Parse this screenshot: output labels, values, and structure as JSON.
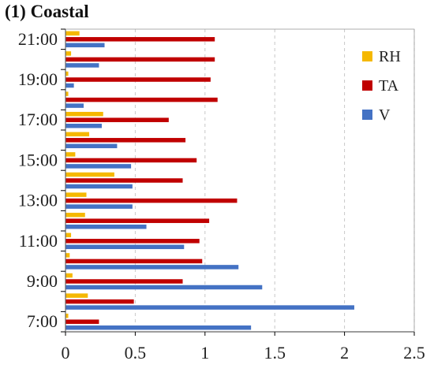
{
  "title": "(1) Coastal",
  "chart_data": {
    "type": "bar",
    "orientation": "horizontal",
    "title": "(1) Coastal",
    "categories": [
      "7:00",
      "8:00",
      "9:00",
      "10:00",
      "11:00",
      "12:00",
      "13:00",
      "14:00",
      "15:00",
      "16:00",
      "17:00",
      "18:00",
      "19:00",
      "20:00",
      "21:00"
    ],
    "y_tick_labels": [
      "7:00",
      "9:00",
      "11:00",
      "13:00",
      "15:00",
      "17:00",
      "19:00",
      "21:00"
    ],
    "series": [
      {
        "name": "RH",
        "color": "#F5B800",
        "values": [
          0.02,
          0.16,
          0.05,
          0.03,
          0.04,
          0.14,
          0.15,
          0.35,
          0.07,
          0.17,
          0.27,
          0.02,
          0.02,
          0.04,
          0.1
        ]
      },
      {
        "name": "TA",
        "color": "#C00000",
        "values": [
          0.24,
          0.49,
          0.84,
          0.98,
          0.96,
          1.03,
          1.23,
          0.84,
          0.94,
          0.86,
          0.74,
          1.09,
          1.04,
          1.07,
          1.07
        ]
      },
      {
        "name": "V",
        "color": "#4472C4",
        "values": [
          1.33,
          2.07,
          1.41,
          1.24,
          0.85,
          0.58,
          0.48,
          0.48,
          0.47,
          0.37,
          0.26,
          0.13,
          0.06,
          0.24,
          0.28
        ]
      }
    ],
    "x_ticks": [
      "0",
      "0.5",
      "1",
      "1.5",
      "2",
      "2.5"
    ],
    "xlim": [
      0,
      2.5
    ],
    "grid": "vertical dashed",
    "legend": {
      "position": "top-right",
      "entries": [
        "RH",
        "TA",
        "V"
      ]
    }
  }
}
